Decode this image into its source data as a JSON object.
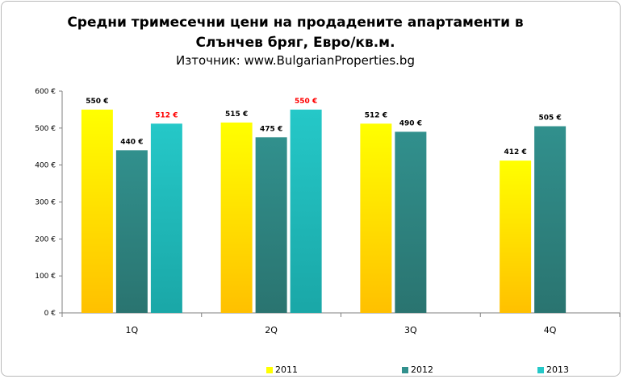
{
  "chart_data": {
    "type": "bar",
    "title_line1": "Средни тримесечни цени на продадените апартаменти в",
    "title_line2": "Слънчев бряг, Евро/кв.м.",
    "subtitle": "Източник: www.BulgarianProperties.bg",
    "categories": [
      "1Q",
      "2Q",
      "3Q",
      "4Q"
    ],
    "ylim": [
      0,
      600
    ],
    "yticks": [
      {
        "value": 0,
        "label": "0 €"
      },
      {
        "value": 100,
        "label": "100 €"
      },
      {
        "value": 200,
        "label": "200 €"
      },
      {
        "value": 300,
        "label": "300 €"
      },
      {
        "value": 400,
        "label": "400 €"
      },
      {
        "value": 500,
        "label": "500 €"
      },
      {
        "value": 600,
        "label": "600 €"
      }
    ],
    "series": [
      {
        "name": "2011",
        "color_top": "#ffff00",
        "color_bottom": "#ffc000",
        "label_color": "#000000",
        "values": [
          550,
          515,
          512,
          412
        ],
        "labels": [
          "550 €",
          "515 €",
          "512 €",
          "412 €"
        ]
      },
      {
        "name": "2012",
        "color_top": "#31908d",
        "color_bottom": "#2a7470",
        "label_color": "#000000",
        "values": [
          440,
          475,
          490,
          505
        ],
        "labels": [
          "440 €",
          "475 €",
          "490 €",
          "505 €"
        ]
      },
      {
        "name": "2013",
        "color_top": "#25c8c8",
        "color_bottom": "#1aa7a7",
        "label_color": "#ff0000",
        "values": [
          512,
          550,
          null,
          null
        ],
        "labels": [
          "512 €",
          "550 €",
          "",
          ""
        ]
      }
    ],
    "legend_position": "bottom",
    "grid": false
  }
}
